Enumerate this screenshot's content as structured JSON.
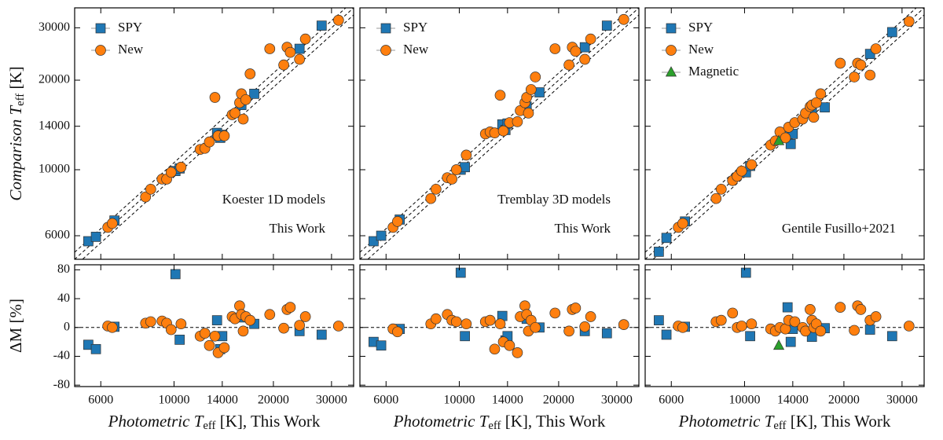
{
  "chart_data": [
    {
      "type": "scatter",
      "xscale": "log",
      "yscale": "log",
      "xlim": [
        5000,
        35000
      ],
      "ylim": [
        5000,
        35000
      ],
      "xticks": [
        6000,
        10000,
        14000,
        20000,
        30000
      ],
      "yticks": [
        6000,
        10000,
        14000,
        20000,
        30000
      ],
      "show_xtick_labels": false,
      "show_ytick_labels": true,
      "diagonal": true,
      "legend": "upper left",
      "ylabel": "Comparison Teff [K]",
      "annotations": [
        "Koester 1D models",
        "This Work"
      ],
      "series": [
        {
          "name": "SPY",
          "color": "#1f77b4",
          "marker": "square",
          "x": [
            5500,
            5800,
            6600,
            10100,
            10400,
            13500,
            13800,
            14000,
            16000,
            17500,
            24000,
            28000
          ],
          "values": [
            5750,
            5950,
            6750,
            9900,
            10100,
            13300,
            12800,
            13100,
            16500,
            18000,
            25500,
            30500
          ]
        },
        {
          "name": "New",
          "color": "#ff7f0e",
          "marker": "circle",
          "x": [
            6300,
            6500,
            8200,
            8500,
            9200,
            9500,
            9800,
            10500,
            12000,
            12400,
            12800,
            13300,
            13600,
            14200,
            15000,
            15300,
            15800,
            16000,
            16200,
            16500,
            17000,
            19500,
            21500,
            22000,
            22500,
            24000,
            25000,
            31500
          ],
          "values": [
            6400,
            6600,
            8100,
            8600,
            9300,
            9300,
            9800,
            10200,
            11700,
            11800,
            12400,
            17500,
            13000,
            13000,
            15300,
            15500,
            16800,
            18000,
            14800,
            17200,
            21000,
            25500,
            22500,
            25800,
            24800,
            23500,
            27500,
            31800
          ]
        }
      ]
    },
    {
      "type": "scatter",
      "xscale": "log",
      "xlim": [
        5000,
        35000
      ],
      "ylim": [
        -82,
        87
      ],
      "xticks": [
        6000,
        10000,
        14000,
        20000,
        30000
      ],
      "yticks": [
        -80,
        -40,
        0,
        40,
        80
      ],
      "show_xtick_labels": true,
      "show_ytick_labels": true,
      "hline": 0,
      "ylabel": "ΔM  [%]",
      "xlabel": "Photometric Teff [K], This Work",
      "series": [
        {
          "color": "#1f77b4",
          "marker": "square",
          "x": [
            5500,
            5800,
            6600,
            10100,
            10400,
            13500,
            13800,
            14000,
            16000,
            17500,
            24000,
            28000
          ],
          "values": [
            -24,
            -30,
            1,
            74,
            -17,
            10,
            -30,
            -12,
            14,
            5,
            -5,
            -10
          ]
        },
        {
          "color": "#ff7f0e",
          "marker": "circle",
          "x": [
            6300,
            6500,
            8200,
            8500,
            9200,
            9500,
            9800,
            10500,
            12000,
            12400,
            12800,
            13300,
            13600,
            14200,
            15000,
            15300,
            15800,
            16000,
            16200,
            16500,
            17000,
            19500,
            21500,
            22000,
            22500,
            24000,
            25000,
            31500
          ],
          "values": [
            2,
            0,
            6,
            8,
            9,
            6,
            -3,
            5,
            -12,
            -8,
            -25,
            -12,
            -35,
            -28,
            15,
            12,
            30,
            18,
            -5,
            15,
            10,
            18,
            -1,
            25,
            28,
            3,
            15,
            2
          ]
        }
      ]
    },
    {
      "type": "scatter",
      "xscale": "log",
      "yscale": "log",
      "xlim": [
        5000,
        35000
      ],
      "ylim": [
        5000,
        35000
      ],
      "xticks": [
        6000,
        10000,
        14000,
        20000,
        30000
      ],
      "yticks": [
        6000,
        10000,
        14000,
        20000,
        30000
      ],
      "show_xtick_labels": false,
      "show_ytick_labels": false,
      "diagonal": true,
      "legend": "upper left",
      "annotations": [
        "Tremblay 3D models",
        "This Work"
      ],
      "series": [
        {
          "name": "SPY",
          "color": "#1f77b4",
          "marker": "square",
          "x": [
            5500,
            5800,
            6600,
            10100,
            10400,
            13500,
            13800,
            14000,
            16000,
            17500,
            24000,
            28000
          ],
          "values": [
            5750,
            6000,
            6800,
            10000,
            10200,
            14200,
            13600,
            14300,
            16300,
            18200,
            25800,
            30500
          ]
        },
        {
          "name": "New",
          "color": "#ff7f0e",
          "marker": "circle",
          "x": [
            6300,
            6500,
            8200,
            8500,
            9200,
            9500,
            9800,
            10500,
            12000,
            12400,
            12800,
            13300,
            13600,
            14200,
            15000,
            15300,
            15800,
            16000,
            16200,
            16500,
            17000,
            19500,
            21500,
            22000,
            22500,
            24000,
            25000,
            31500
          ],
          "values": [
            6400,
            6700,
            8000,
            8600,
            9400,
            9300,
            10000,
            11200,
            13200,
            13400,
            13300,
            17800,
            13500,
            14400,
            14500,
            15800,
            16800,
            17500,
            15500,
            18600,
            20500,
            25500,
            22500,
            25800,
            25000,
            23500,
            27500,
            32000
          ]
        }
      ]
    },
    {
      "type": "scatter",
      "xscale": "log",
      "xlim": [
        5000,
        35000
      ],
      "ylim": [
        -82,
        87
      ],
      "xticks": [
        6000,
        10000,
        14000,
        20000,
        30000
      ],
      "yticks": [
        -80,
        -40,
        0,
        40,
        80
      ],
      "show_xtick_labels": true,
      "show_ytick_labels": false,
      "hline": 0,
      "xlabel": "Photometric Teff [K], This Work",
      "series": [
        {
          "color": "#1f77b4",
          "marker": "square",
          "x": [
            5500,
            5800,
            6600,
            10100,
            10400,
            13500,
            13800,
            14000,
            16000,
            17500,
            24000,
            28000
          ],
          "values": [
            -20,
            -25,
            -2,
            76,
            -12,
            16,
            -18,
            -12,
            12,
            0,
            -5,
            -8
          ]
        },
        {
          "color": "#ff7f0e",
          "marker": "circle",
          "x": [
            6300,
            6500,
            8200,
            8500,
            9200,
            9500,
            9800,
            10500,
            12000,
            12400,
            12800,
            13300,
            13600,
            14200,
            15000,
            15300,
            15800,
            16000,
            16200,
            16500,
            17000,
            19500,
            21500,
            22000,
            22500,
            24000,
            25000,
            31500
          ],
          "values": [
            -2,
            -6,
            5,
            12,
            18,
            10,
            8,
            5,
            8,
            10,
            -30,
            5,
            -20,
            -25,
            -35,
            15,
            30,
            18,
            -5,
            10,
            0,
            20,
            -5,
            25,
            27,
            1,
            15,
            4
          ]
        }
      ]
    },
    {
      "type": "scatter",
      "xscale": "log",
      "yscale": "log",
      "xlim": [
        5000,
        35000
      ],
      "ylim": [
        5000,
        35000
      ],
      "xticks": [
        6000,
        10000,
        14000,
        20000,
        30000
      ],
      "yticks": [
        6000,
        10000,
        14000,
        20000,
        30000
      ],
      "show_xtick_labels": false,
      "show_ytick_labels": false,
      "diagonal": true,
      "legend": "upper left",
      "annotations": [
        "Gentile Fusillo+2021"
      ],
      "series": [
        {
          "name": "SPY",
          "color": "#1f77b4",
          "marker": "square",
          "x": [
            5500,
            5800,
            6600,
            10100,
            10400,
            13500,
            13800,
            14000,
            16000,
            17500,
            24000,
            28000
          ],
          "values": [
            5300,
            5900,
            6700,
            9800,
            10300,
            13000,
            12200,
            13200,
            15500,
            16200,
            24500,
            29000
          ]
        },
        {
          "name": "New",
          "color": "#ff7f0e",
          "marker": "circle",
          "x": [
            6300,
            6500,
            8200,
            8500,
            9200,
            9500,
            9800,
            10500,
            12000,
            12400,
            12800,
            13300,
            13600,
            14200,
            15000,
            15300,
            15800,
            16000,
            16200,
            16500,
            17000,
            19500,
            21500,
            22000,
            22500,
            24000,
            25000,
            31500
          ],
          "values": [
            6400,
            6600,
            8000,
            8600,
            9200,
            9500,
            9900,
            10400,
            12100,
            12500,
            13400,
            12800,
            13900,
            14400,
            14800,
            15500,
            16300,
            16500,
            15000,
            16800,
            18000,
            22800,
            20500,
            22800,
            22500,
            20800,
            25500,
            31500
          ]
        },
        {
          "name": "Magnetic",
          "color": "#2ca02c",
          "marker": "triangle",
          "x": [
            12700
          ],
          "values": [
            12500
          ]
        }
      ]
    },
    {
      "type": "scatter",
      "xscale": "log",
      "xlim": [
        5000,
        35000
      ],
      "ylim": [
        -82,
        87
      ],
      "xticks": [
        6000,
        10000,
        14000,
        20000,
        30000
      ],
      "yticks": [
        -80,
        -40,
        0,
        40,
        80
      ],
      "show_xtick_labels": true,
      "show_ytick_labels": false,
      "hline": 0,
      "xlabel": "Photometric Teff [K], This Work",
      "series": [
        {
          "color": "#1f77b4",
          "marker": "square",
          "x": [
            5500,
            5800,
            6600,
            10100,
            10400,
            13500,
            13800,
            14000,
            16000,
            17500,
            24000,
            28000
          ],
          "values": [
            10,
            -10,
            1,
            76,
            -12,
            28,
            -20,
            -2,
            -13,
            -1,
            -3,
            -12
          ]
        },
        {
          "color": "#ff7f0e",
          "marker": "circle",
          "x": [
            6300,
            6500,
            8200,
            8500,
            9200,
            9500,
            9800,
            10500,
            12000,
            12400,
            12800,
            13300,
            13600,
            14200,
            15000,
            15300,
            15800,
            16000,
            16200,
            16500,
            17000,
            19500,
            21500,
            22000,
            22500,
            24000,
            25000,
            31500
          ],
          "values": [
            2,
            0,
            8,
            10,
            20,
            0,
            2,
            5,
            -2,
            -5,
            0,
            -2,
            10,
            8,
            0,
            -5,
            25,
            10,
            0,
            5,
            -5,
            28,
            -4,
            30,
            25,
            10,
            15,
            2
          ]
        },
        {
          "color": "#2ca02c",
          "marker": "triangle",
          "x": [
            12700
          ],
          "values": [
            -25
          ]
        }
      ]
    }
  ]
}
